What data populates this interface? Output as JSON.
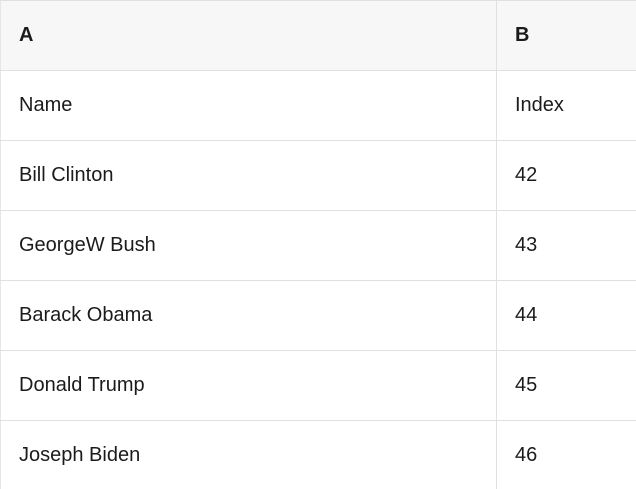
{
  "table": {
    "column_headers": [
      {
        "id": "A",
        "label": "A"
      },
      {
        "id": "B",
        "label": "B"
      }
    ],
    "rows": [
      {
        "a": "Name",
        "b": "Index"
      },
      {
        "a": "Bill Clinton",
        "b": "42"
      },
      {
        "a": "GeorgeW Bush",
        "b": "43"
      },
      {
        "a": "Barack Obama",
        "b": "44"
      },
      {
        "a": "Donald Trump",
        "b": "45"
      },
      {
        "a": "Joseph Biden",
        "b": "46"
      }
    ]
  },
  "colors": {
    "header_bg": "#f7f7f7",
    "border": "#e0e0e0",
    "row_bg": "#ffffff",
    "text": "#1b1b1b"
  }
}
